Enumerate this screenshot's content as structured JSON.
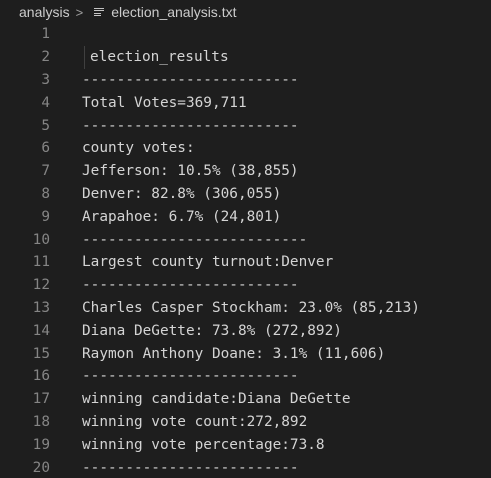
{
  "breadcrumb": {
    "folder": "analysis",
    "separator": ">",
    "file_icon": "text-file-icon",
    "file": "election_analysis.txt"
  },
  "editor": {
    "lines": [
      {
        "num": "1",
        "text": ""
      },
      {
        "num": "2",
        "text": "election_results"
      },
      {
        "num": "3",
        "text": "-------------------------"
      },
      {
        "num": "4",
        "text": "Total Votes=369,711"
      },
      {
        "num": "5",
        "text": "-------------------------"
      },
      {
        "num": "6",
        "text": "county votes:"
      },
      {
        "num": "7",
        "text": "Jefferson: 10.5% (38,855)"
      },
      {
        "num": "8",
        "text": "Denver: 82.8% (306,055)"
      },
      {
        "num": "9",
        "text": "Arapahoe: 6.7% (24,801)"
      },
      {
        "num": "10",
        "text": "--------------------------"
      },
      {
        "num": "11",
        "text": "Largest county turnout:Denver"
      },
      {
        "num": "12",
        "text": "-------------------------"
      },
      {
        "num": "13",
        "text": "Charles Casper Stockham: 23.0% (85,213)"
      },
      {
        "num": "14",
        "text": "Diana DeGette: 73.8% (272,892)"
      },
      {
        "num": "15",
        "text": "Raymon Anthony Doane: 3.1% (11,606)"
      },
      {
        "num": "16",
        "text": "-------------------------"
      },
      {
        "num": "17",
        "text": "winning candidate:Diana DeGette"
      },
      {
        "num": "18",
        "text": "winning vote count:272,892"
      },
      {
        "num": "19",
        "text": "winning vote percentage:73.8"
      },
      {
        "num": "20",
        "text": "-------------------------"
      }
    ]
  },
  "colors": {
    "background": "#1e1e1e",
    "text": "#d4d4d4",
    "line_number": "#858585",
    "breadcrumb_text": "#cccccc"
  }
}
